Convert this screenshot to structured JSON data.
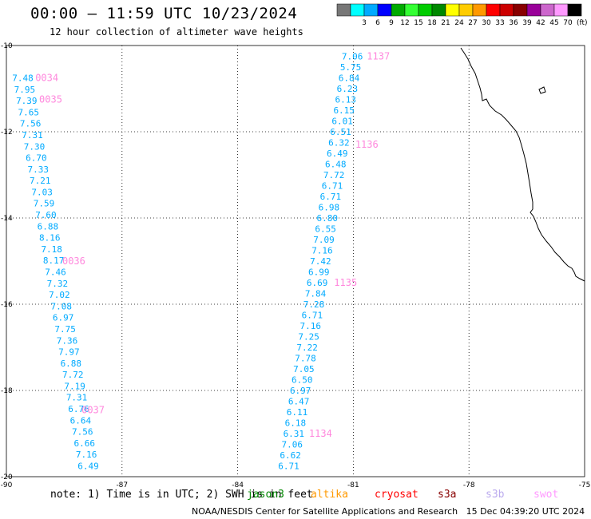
{
  "title": "00:00 – 11:59 UTC 10/23/2024",
  "subtitle": "12 hour collection of altimeter wave heights",
  "legend": {
    "unit": "(ft)",
    "swatches": [
      {
        "color": "#777777",
        "label": ""
      },
      {
        "color": "#00ffff",
        "label": "3"
      },
      {
        "color": "#00aaff",
        "label": "6"
      },
      {
        "color": "#0000ff",
        "label": "9"
      },
      {
        "color": "#00aa00",
        "label": "12"
      },
      {
        "color": "#33ff33",
        "label": "15"
      },
      {
        "color": "#00cc00",
        "label": "18"
      },
      {
        "color": "#008800",
        "label": "21"
      },
      {
        "color": "#ffff00",
        "label": "24"
      },
      {
        "color": "#ffcc00",
        "label": "27"
      },
      {
        "color": "#ff9900",
        "label": "30"
      },
      {
        "color": "#ff0000",
        "label": "33"
      },
      {
        "color": "#cc0000",
        "label": "36"
      },
      {
        "color": "#880000",
        "label": "39"
      },
      {
        "color": "#990099",
        "label": "42"
      },
      {
        "color": "#cc66cc",
        "label": "45"
      },
      {
        "color": "#ff99ff",
        "label": "70"
      },
      {
        "color": "#000000",
        "label": ""
      }
    ]
  },
  "chart_data": {
    "type": "scatter",
    "xlim": [
      -90,
      -75
    ],
    "ylim": [
      -20,
      -10
    ],
    "x_ticks": [
      "-90",
      "-87",
      "-84",
      "-81",
      "-78",
      "-75"
    ],
    "y_ticks": [
      "-10",
      "-12",
      "-14",
      "-16",
      "-18",
      "-20"
    ],
    "x_tick_values": [
      -90,
      -87,
      -84,
      -81,
      -78,
      -75
    ],
    "y_tick_values": [
      -10,
      -12,
      -14,
      -16,
      -18,
      -20
    ],
    "grid": true,
    "point_color": "#00aaff",
    "pass_label_color": "#ff88dd",
    "tracks": [
      {
        "start": [
          -89.85,
          -10.75
        ],
        "end": [
          -88.15,
          -19.75
        ],
        "values": [
          "7.48",
          "7.95",
          "7.39",
          "7.65",
          "7.56",
          "7.31",
          "7.30",
          "6.70",
          "7.33",
          "7.21",
          "7.03",
          "7.59",
          "7.60",
          "6.88",
          "8.16",
          "7.18",
          "8.17",
          "7.46",
          "7.32",
          "7.02",
          "7.08",
          "6.97",
          "7.75",
          "7.36",
          "7.97",
          "6.88",
          "7.72",
          "7.19",
          "7.31",
          "6.76",
          "6.64",
          "7.56",
          "6.66",
          "7.16",
          "6.49"
        ],
        "pass_labels": [
          {
            "text": "0034",
            "lon": -89.25,
            "lat": -10.75
          },
          {
            "text": "0035",
            "lon": -89.15,
            "lat": -11.25
          },
          {
            "text": "0036",
            "lon": -88.55,
            "lat": -15.0
          },
          {
            "text": "0037",
            "lon": -88.05,
            "lat": -18.45
          }
        ]
      },
      {
        "start": [
          -81.3,
          -10.25
        ],
        "end": [
          -82.95,
          -19.75
        ],
        "values": [
          "7.06",
          "5.75",
          "6.84",
          "6.23",
          "6.13",
          "6.15",
          "6.01",
          "6.51",
          "6.32",
          "6.49",
          "6.48",
          "7.72",
          "6.71",
          "6.71",
          "6.98",
          "6.80",
          "6.55",
          "7.09",
          "7.16",
          "7.42",
          "6.99",
          "6.69",
          "7.84",
          "7.28",
          "6.71",
          "7.16",
          "7.25",
          "7.22",
          "7.78",
          "7.05",
          "6.50",
          "6.97",
          "6.47",
          "6.11",
          "6.18",
          "6.31",
          "7.06",
          "6.62",
          "6.71"
        ],
        "pass_labels": [
          {
            "text": "1137",
            "lon": -80.65,
            "lat": -10.25
          },
          {
            "text": "1136",
            "lon": -80.95,
            "lat": -12.3
          },
          {
            "text": "1135",
            "lon": -81.5,
            "lat": -15.5
          },
          {
            "text": "1134",
            "lon": -82.15,
            "lat": -19.0
          }
        ]
      }
    ]
  },
  "footer": {
    "note": "note: 1) Time is in UTC; 2) SWH is in feet",
    "credit": "NOAA/NESDIS Center for Satellite Applications and Research   15 Dec 04:39:20 UTC 2024",
    "satellites": [
      {
        "name": "jason3",
        "color": "#008800"
      },
      {
        "name": "altika",
        "color": "#ff9900"
      },
      {
        "name": "cryosat",
        "color": "#ff0000"
      },
      {
        "name": "s3a",
        "color": "#880000"
      },
      {
        "name": "s3b",
        "color": "#bbaaee"
      },
      {
        "name": "swot",
        "color": "#ff99ff"
      }
    ]
  }
}
